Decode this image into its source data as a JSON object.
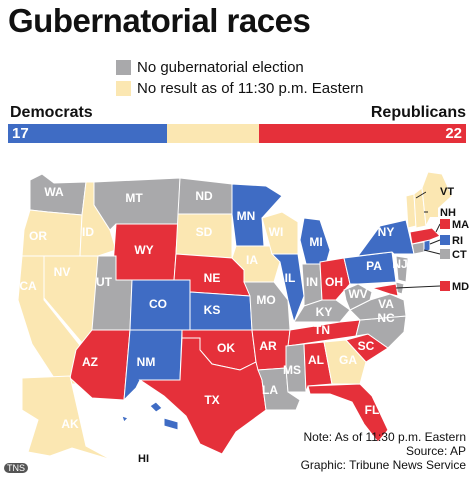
{
  "title": "Gubernatorial races",
  "legend": [
    {
      "label": "No gubernatorial election",
      "color": "#a9a9ab"
    },
    {
      "label": "No result as of 11:30 p.m. Eastern",
      "color": "#fbe7b2"
    }
  ],
  "colors": {
    "dem": "#3f6cc4",
    "rep": "#e5303a",
    "none": "#a9a9ab",
    "pending": "#fbe7b2"
  },
  "tally": {
    "dem_label": "Democrats",
    "rep_label": "Republicans",
    "dem_count": "17",
    "rep_count": "22"
  },
  "states": [
    {
      "abbr": "WA",
      "status": "none"
    },
    {
      "abbr": "OR",
      "status": "pending"
    },
    {
      "abbr": "CA",
      "status": "pending"
    },
    {
      "abbr": "NV",
      "status": "pending"
    },
    {
      "abbr": "ID",
      "status": "pending"
    },
    {
      "abbr": "MT",
      "status": "none"
    },
    {
      "abbr": "WY",
      "status": "rep"
    },
    {
      "abbr": "UT",
      "status": "none"
    },
    {
      "abbr": "AZ",
      "status": "rep"
    },
    {
      "abbr": "CO",
      "status": "dem"
    },
    {
      "abbr": "NM",
      "status": "dem"
    },
    {
      "abbr": "ND",
      "status": "none"
    },
    {
      "abbr": "SD",
      "status": "pending"
    },
    {
      "abbr": "NE",
      "status": "rep"
    },
    {
      "abbr": "KS",
      "status": "dem"
    },
    {
      "abbr": "OK",
      "status": "rep"
    },
    {
      "abbr": "TX",
      "status": "rep"
    },
    {
      "abbr": "MN",
      "status": "dem"
    },
    {
      "abbr": "IA",
      "status": "pending"
    },
    {
      "abbr": "MO",
      "status": "none"
    },
    {
      "abbr": "AR",
      "status": "rep"
    },
    {
      "abbr": "LA",
      "status": "none"
    },
    {
      "abbr": "WI",
      "status": "pending"
    },
    {
      "abbr": "IL",
      "status": "dem"
    },
    {
      "abbr": "MI",
      "status": "dem"
    },
    {
      "abbr": "IN",
      "status": "none"
    },
    {
      "abbr": "OH",
      "status": "rep"
    },
    {
      "abbr": "KY",
      "status": "none"
    },
    {
      "abbr": "TN",
      "status": "rep"
    },
    {
      "abbr": "MS",
      "status": "none"
    },
    {
      "abbr": "AL",
      "status": "rep"
    },
    {
      "abbr": "GA",
      "status": "pending"
    },
    {
      "abbr": "FL",
      "status": "rep"
    },
    {
      "abbr": "SC",
      "status": "rep"
    },
    {
      "abbr": "NC",
      "status": "none"
    },
    {
      "abbr": "VA",
      "status": "none"
    },
    {
      "abbr": "WV",
      "status": "none"
    },
    {
      "abbr": "PA",
      "status": "dem"
    },
    {
      "abbr": "NY",
      "status": "dem"
    },
    {
      "abbr": "NJ",
      "status": "none"
    },
    {
      "abbr": "DE",
      "status": "none"
    },
    {
      "abbr": "MD",
      "status": "rep"
    },
    {
      "abbr": "CT",
      "status": "none"
    },
    {
      "abbr": "RI",
      "status": "dem"
    },
    {
      "abbr": "MA",
      "status": "rep"
    },
    {
      "abbr": "VT",
      "status": "pending"
    },
    {
      "abbr": "NH",
      "status": "pending"
    },
    {
      "abbr": "ME",
      "status": "pending"
    },
    {
      "abbr": "AK",
      "status": "pending"
    },
    {
      "abbr": "HI",
      "status": "dem"
    }
  ],
  "note": {
    "line1": "Note: As of 11:30 p.m. Eastern",
    "line2": "Source: AP",
    "line3": "Graphic: Tribune News Service"
  },
  "credit": "TNS"
}
